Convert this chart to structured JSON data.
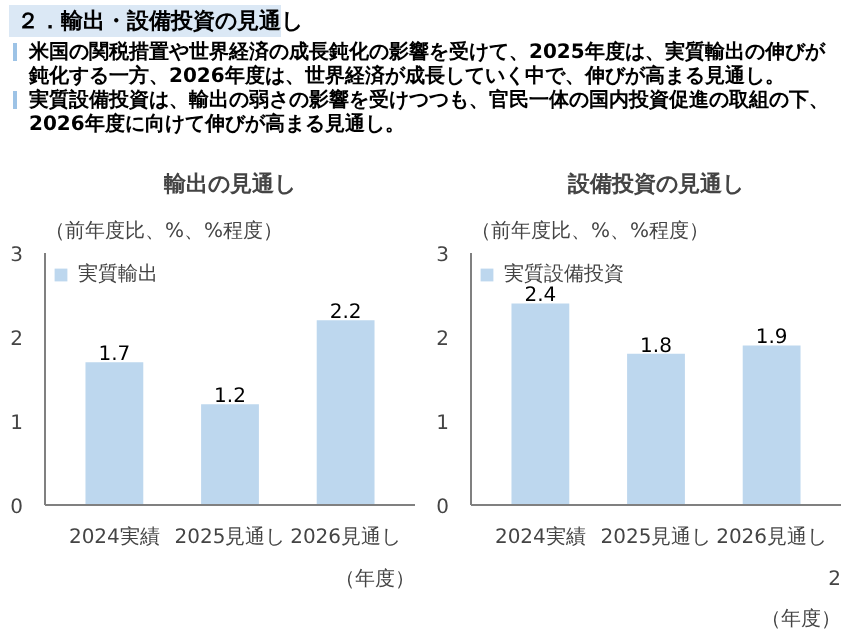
{
  "chart_data": [
    {
      "type": "other",
      "title": "２．輸出・設備投資の見通し",
      "annotations": [
        "米国の関税措置や世界経済の成長鈍化の影響を受けて、2025年度は、実質輸出の伸びが鈍化する一方、2026年度は、世界経済が成長していく中で、伸びが高まる見通し。",
        "実質設備投資は、輸出の弱さの影響を受けつつも、官民一体の国内投資促進の取組の下、2026年度に向けて伸びが高まる見通し。"
      ]
    },
    {
      "type": "bar",
      "title": "輸出の見通し",
      "ylabel": "（前年度比、%、%程度）",
      "xlabel": "（年度）",
      "categories": [
        "2024実績",
        "2025見通し",
        "2026見通し"
      ],
      "series": [
        {
          "name": "実質輸出",
          "color": "#bdd7ee",
          "values": [
            1.7,
            1.2,
            2.2
          ]
        }
      ],
      "ylim": [
        0,
        3
      ],
      "yticks": [
        0,
        1,
        2,
        3
      ],
      "data_labels": true,
      "legend": "top left"
    },
    {
      "type": "bar",
      "title": "設備投資の見通し",
      "ylabel": "（前年度比、%、%程度）",
      "xlabel": "（年度）",
      "categories": [
        "2024実績",
        "2025見通し",
        "2026見通し"
      ],
      "series": [
        {
          "name": "実質設備投資",
          "color": "#bdd7ee",
          "values": [
            2.4,
            1.8,
            1.9
          ]
        }
      ],
      "ylim": [
        0,
        3
      ],
      "yticks": [
        0,
        1,
        2,
        3
      ],
      "data_labels": true,
      "legend": "top left",
      "annotations": [
        "2"
      ]
    }
  ]
}
